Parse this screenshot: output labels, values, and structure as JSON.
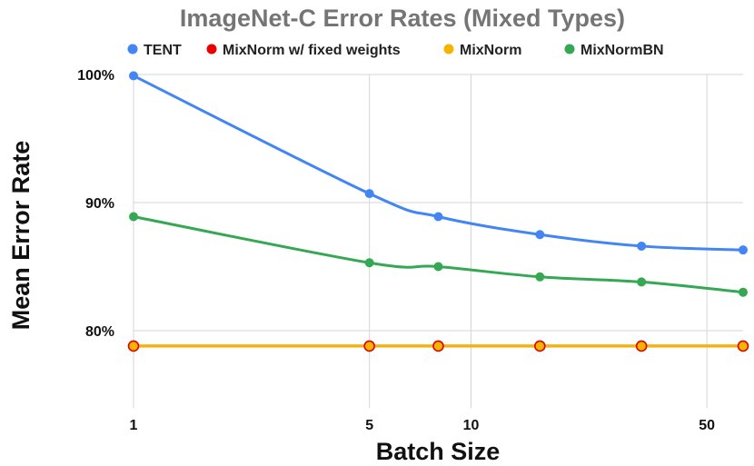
{
  "chart_data": {
    "type": "line",
    "title": "ImageNet-C Error Rates (Mixed Types)",
    "xlabel": "Batch Size",
    "ylabel": "Mean Error Rate",
    "x_scale": "log",
    "x": [
      1,
      5,
      8,
      16,
      32,
      64
    ],
    "xlim": [
      1,
      64
    ],
    "xticks": [
      1,
      5,
      10,
      50
    ],
    "ylim": [
      0.75,
      1.0
    ],
    "yticks": [
      {
        "value": 0.8,
        "label": "80%"
      },
      {
        "value": 0.9,
        "label": "90%"
      },
      {
        "value": 1.0,
        "label": "100%"
      }
    ],
    "grid": true,
    "legend_position": "top",
    "series": [
      {
        "name": "TENT",
        "color": "#4285f4",
        "marker_edge": "#4285f4",
        "values": [
          0.999,
          0.907,
          0.889,
          0.875,
          0.866,
          0.863
        ]
      },
      {
        "name": "MixNorm w/ fixed weights",
        "color": "#ea0000",
        "marker_edge": "#ea0000",
        "values": [
          0.788,
          0.788,
          0.788,
          0.788,
          0.788,
          0.788
        ]
      },
      {
        "name": "MixNorm",
        "color": "#f4b400",
        "marker_edge": "#e00000",
        "values": [
          0.788,
          0.788,
          0.788,
          0.788,
          0.788,
          0.788
        ]
      },
      {
        "name": "MixNormBN",
        "color": "#34a853",
        "marker_edge": "#34a853",
        "values": [
          0.889,
          0.853,
          0.85,
          0.842,
          0.838,
          0.83
        ]
      }
    ]
  }
}
